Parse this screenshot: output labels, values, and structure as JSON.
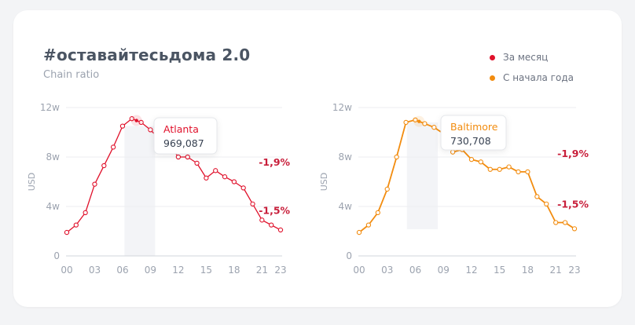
{
  "title": "#оставайтесьдома 2.0",
  "subtitle": "Chain ratio",
  "legend": [
    {
      "label": "За месяц",
      "color": "#e0112b"
    },
    {
      "label": "С начала года",
      "color": "#f28c0f"
    }
  ],
  "chart_data": [
    {
      "type": "line",
      "ylabel": "USD",
      "color": "#e0112b",
      "ylim": [
        0,
        12
      ],
      "yticks": [
        {
          "v": 0,
          "label": "0"
        },
        {
          "v": 4,
          "label": "4w"
        },
        {
          "v": 8,
          "label": "8w"
        },
        {
          "v": 12,
          "label": "12w"
        }
      ],
      "xticks": [
        "00",
        "03",
        "06",
        "09",
        "12",
        "15",
        "18",
        "21",
        "23"
      ],
      "x": [
        0,
        1,
        2,
        3,
        4,
        5,
        6,
        7,
        8,
        9,
        10,
        11,
        12,
        13,
        14,
        15,
        16,
        17,
        18,
        19,
        20,
        21,
        22,
        23
      ],
      "values": [
        1.9,
        2.5,
        3.5,
        5.8,
        7.3,
        8.8,
        10.5,
        11.1,
        10.8,
        10.2,
        9.4,
        9.0,
        8.0,
        8.0,
        7.5,
        6.3,
        6.9,
        6.4,
        6.0,
        5.5,
        4.2,
        2.9,
        2.5,
        2.1
      ],
      "tooltip": {
        "label": "Atlanta",
        "value": "969,087"
      },
      "annotations": [
        {
          "x": 22.5,
          "y": 7.3,
          "text": "-1,9%"
        },
        {
          "x": 22.5,
          "y": 3.4,
          "text": "-1,5%"
        }
      ]
    },
    {
      "type": "line",
      "ylabel": "USD",
      "color": "#f28c0f",
      "ylim": [
        0,
        12
      ],
      "yticks": [
        {
          "v": 0,
          "label": "0"
        },
        {
          "v": 4,
          "label": "4w"
        },
        {
          "v": 8,
          "label": "8w"
        },
        {
          "v": 12,
          "label": "12w"
        }
      ],
      "xticks": [
        "00",
        "03",
        "06",
        "09",
        "12",
        "15",
        "18",
        "21",
        "23"
      ],
      "x": [
        0,
        1,
        2,
        3,
        4,
        5,
        6,
        7,
        8,
        9,
        10,
        11,
        12,
        13,
        14,
        15,
        16,
        17,
        18,
        19,
        20,
        21,
        22,
        23
      ],
      "values": [
        1.9,
        2.5,
        3.5,
        5.4,
        8.0,
        10.8,
        11.0,
        10.7,
        10.4,
        9.9,
        8.4,
        8.6,
        7.8,
        7.6,
        7.0,
        7.0,
        7.2,
        6.8,
        6.8,
        4.8,
        4.2,
        2.7,
        2.7,
        2.2
      ],
      "tooltip": {
        "label": "Baltimore",
        "value": "730,708"
      },
      "annotations": [
        {
          "x": 23,
          "y": 8.0,
          "text": "-1,9%"
        },
        {
          "x": 23,
          "y": 3.9,
          "text": "-1,5%"
        }
      ]
    }
  ]
}
